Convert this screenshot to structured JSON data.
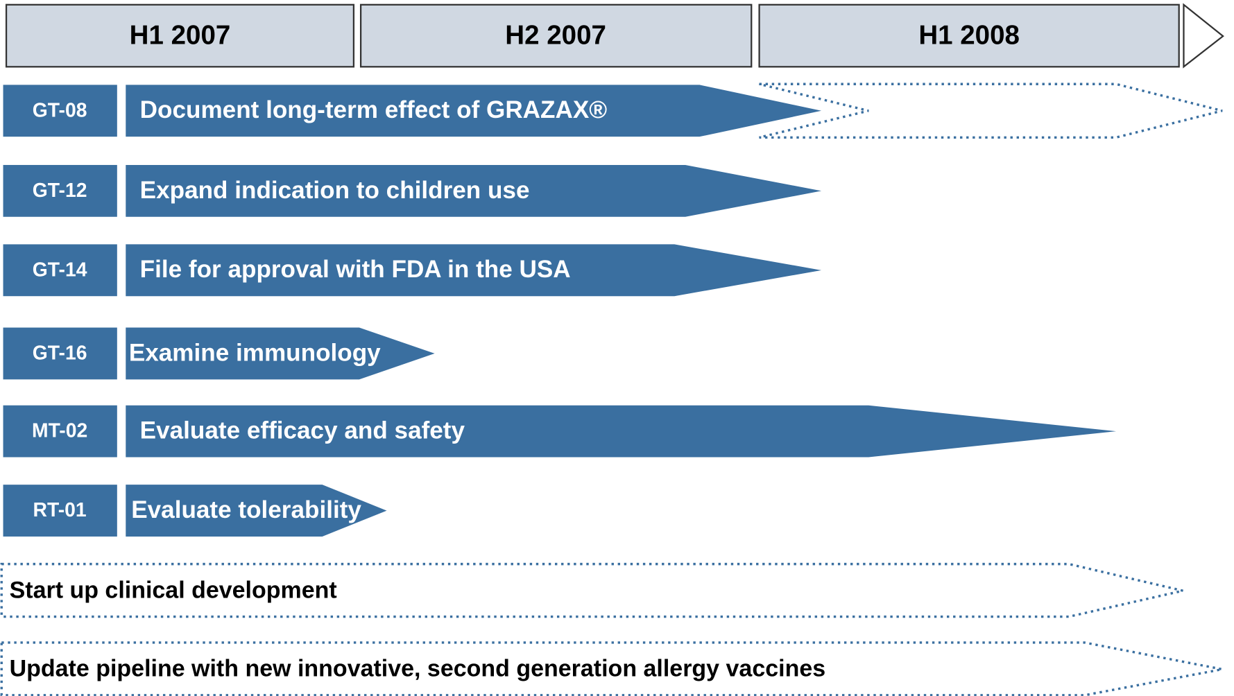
{
  "header": {
    "periods": [
      "H1 2007",
      "H2 2007",
      "H1 2008"
    ]
  },
  "rows": [
    {
      "code": "GT-08",
      "label": "Document long-term effect of GRAZAX®"
    },
    {
      "code": "GT-12",
      "label": "Expand indication to children use"
    },
    {
      "code": "GT-14",
      "label": "File for approval with FDA in the USA"
    },
    {
      "code": "GT-16",
      "label": "Examine immunology"
    },
    {
      "code": "MT-02",
      "label": "Evaluate efficacy and safety"
    },
    {
      "code": "RT-01",
      "label": "Evaluate tolerability"
    }
  ],
  "goals": [
    "Start up clinical development",
    "Update pipeline with new innovative, second generation allergy vaccines"
  ]
}
